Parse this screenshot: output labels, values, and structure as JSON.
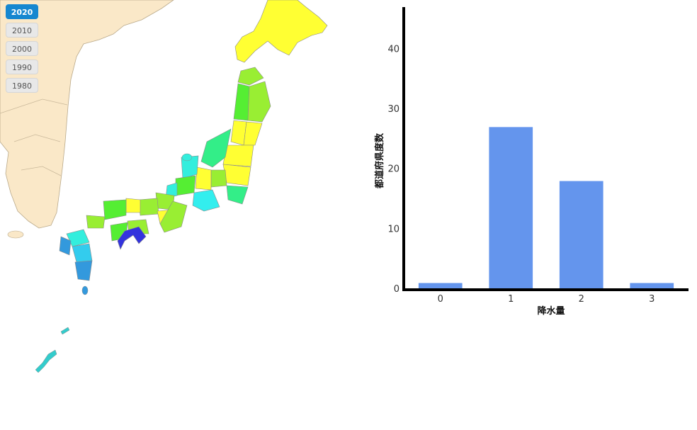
{
  "year_selector": {
    "years": [
      "2020",
      "2010",
      "2000",
      "1990",
      "1980"
    ],
    "selected": "2020"
  },
  "colors": {
    "land": "#fae8c8",
    "bar": "#6495ed",
    "axis": "#000000",
    "active_button": "#1687d0"
  },
  "chart_data": {
    "type": "bar",
    "categories": [
      "0",
      "1",
      "2",
      "3"
    ],
    "values": [
      1,
      27,
      18,
      1
    ],
    "xlabel": "降水量",
    "ylabel": "都道府県度数",
    "yticks": [
      "0",
      "10",
      "20",
      "30",
      "40"
    ],
    "ylim": [
      0,
      47
    ]
  }
}
